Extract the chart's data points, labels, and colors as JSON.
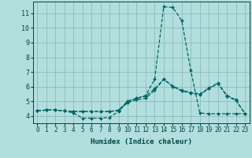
{
  "xlabel": "Humidex (Indice chaleur)",
  "background_color": "#b2dede",
  "grid_color": "#8cbcbc",
  "line_color": "#006666",
  "xlim": [
    -0.5,
    23.5
  ],
  "ylim": [
    3.5,
    11.8
  ],
  "xticks": [
    0,
    1,
    2,
    3,
    4,
    5,
    6,
    7,
    8,
    9,
    10,
    11,
    12,
    13,
    14,
    15,
    16,
    17,
    18,
    19,
    20,
    21,
    22,
    23
  ],
  "yticks": [
    4,
    5,
    6,
    7,
    8,
    9,
    10,
    11
  ],
  "series": [
    [
      4.35,
      4.4,
      4.4,
      4.35,
      4.2,
      3.85,
      3.85,
      3.85,
      3.9,
      4.3,
      5.0,
      5.2,
      5.4,
      6.5,
      11.45,
      11.4,
      10.5,
      7.1,
      4.2,
      4.15,
      4.15,
      4.15,
      4.15,
      4.15
    ],
    [
      4.35,
      4.4,
      4.4,
      4.35,
      4.3,
      4.3,
      4.3,
      4.3,
      4.3,
      4.4,
      5.0,
      5.2,
      5.35,
      5.85,
      6.5,
      6.05,
      5.75,
      5.6,
      5.5,
      5.9,
      6.25,
      5.4,
      5.1,
      4.15
    ],
    [
      4.35,
      4.4,
      4.4,
      4.35,
      4.3,
      4.3,
      4.3,
      4.3,
      4.3,
      4.35,
      4.9,
      5.1,
      5.2,
      5.75,
      6.5,
      6.0,
      5.7,
      5.55,
      5.45,
      5.85,
      6.2,
      5.35,
      5.05,
      4.15
    ]
  ],
  "tick_fontsize": 5.5,
  "xlabel_fontsize": 6.5,
  "line_width": 0.9,
  "marker_size": 2.0
}
